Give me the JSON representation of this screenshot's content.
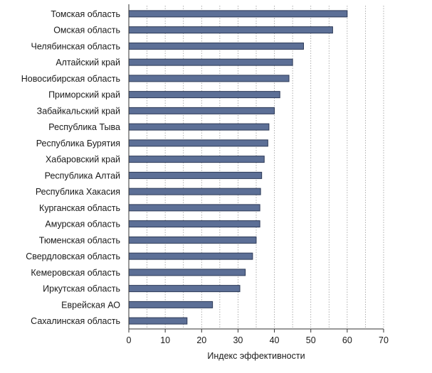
{
  "chart_data": {
    "type": "bar",
    "orientation": "horizontal",
    "categories": [
      "Томская область",
      "Омская область",
      "Челябинская область",
      "Алтайский край",
      "Новосибирская область",
      "Приморский край",
      "Забайкальский край",
      "Республика Тыва",
      "Республика Бурятия",
      "Хабаровский край",
      "Республика Алтай",
      "Республика Хакасия",
      "Курганская область",
      "Амурская область",
      "Тюменская область",
      "Свердловская область",
      "Кемеровская область",
      "Иркутская область",
      "Еврейская АО",
      "Сахалинская область"
    ],
    "values": [
      60,
      56,
      48,
      45,
      44,
      41.5,
      40,
      38.5,
      38.2,
      37.2,
      36.5,
      36.2,
      36,
      36,
      35,
      34,
      32,
      30.5,
      23,
      16
    ],
    "xlabel": "Индекс эффективности",
    "xlim": [
      0,
      70
    ],
    "xticks": [
      "0",
      "10",
      "20",
      "30",
      "40",
      "50",
      "60",
      "70"
    ],
    "grid": true,
    "bar_color": "#5c6f96"
  }
}
